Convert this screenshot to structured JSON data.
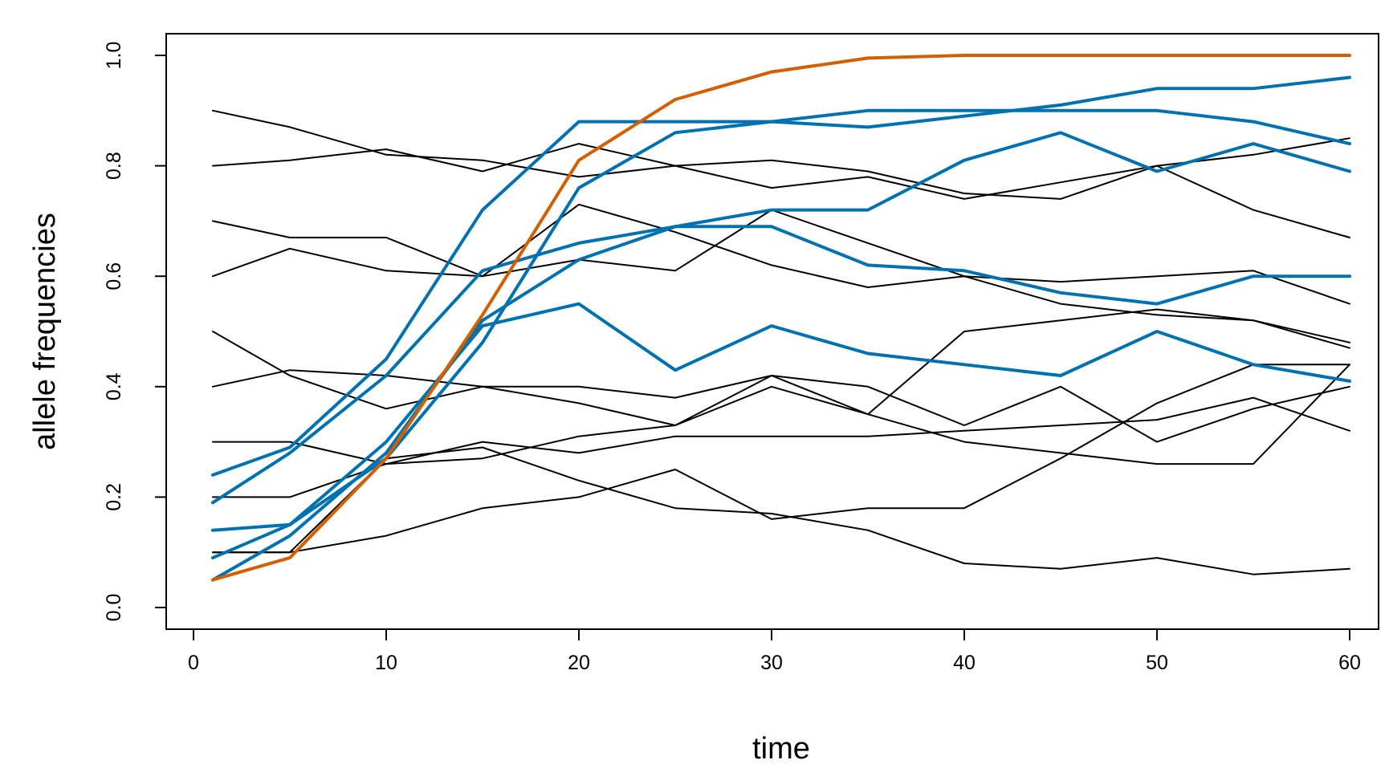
{
  "chart_data": {
    "type": "line",
    "title": "",
    "xlabel": "time",
    "ylabel": "allele frequencies",
    "xlim": [
      0,
      60
    ],
    "ylim": [
      0,
      1
    ],
    "xticks": [
      0,
      10,
      20,
      30,
      40,
      50,
      60
    ],
    "yticks": [
      0.0,
      0.2,
      0.4,
      0.6,
      0.8,
      1.0
    ],
    "xtick_labels": [
      "0",
      "10",
      "20",
      "30",
      "40",
      "50",
      "60"
    ],
    "ytick_labels": [
      "0.0",
      "0.2",
      "0.4",
      "0.6",
      "0.8",
      "1.0"
    ],
    "grid": false,
    "legend": "none",
    "colors": {
      "neutral": "#000000",
      "selected": "#0072b2",
      "fixed": "#d55e00"
    },
    "series": [
      {
        "group": "neutral",
        "x": [
          1,
          5,
          10,
          15,
          20,
          25,
          30,
          35,
          40,
          45,
          50,
          55,
          60
        ],
        "values": [
          0.9,
          0.87,
          0.82,
          0.81,
          0.78,
          0.8,
          0.81,
          0.79,
          0.75,
          0.74,
          0.8,
          0.72,
          0.67
        ]
      },
      {
        "group": "neutral",
        "x": [
          1,
          5,
          10,
          15,
          20,
          25,
          30,
          35,
          40,
          45,
          50,
          55,
          60
        ],
        "values": [
          0.8,
          0.81,
          0.83,
          0.79,
          0.84,
          0.8,
          0.76,
          0.78,
          0.74,
          0.77,
          0.8,
          0.82,
          0.85
        ]
      },
      {
        "group": "neutral",
        "x": [
          1,
          5,
          10,
          15,
          20,
          25,
          30,
          35,
          40,
          45,
          50,
          55,
          60
        ],
        "values": [
          0.7,
          0.67,
          0.67,
          0.6,
          0.73,
          0.68,
          0.62,
          0.58,
          0.6,
          0.59,
          0.6,
          0.61,
          0.55
        ]
      },
      {
        "group": "neutral",
        "x": [
          1,
          5,
          10,
          15,
          20,
          25,
          30,
          35,
          40,
          45,
          50,
          55,
          60
        ],
        "values": [
          0.6,
          0.65,
          0.61,
          0.6,
          0.63,
          0.61,
          0.72,
          0.66,
          0.6,
          0.55,
          0.53,
          0.52,
          0.47
        ]
      },
      {
        "group": "neutral",
        "x": [
          1,
          5,
          10,
          15,
          20,
          25,
          30,
          35,
          40,
          45,
          50,
          55,
          60
        ],
        "values": [
          0.5,
          0.42,
          0.36,
          0.4,
          0.4,
          0.38,
          0.42,
          0.35,
          0.5,
          0.52,
          0.54,
          0.52,
          0.48
        ]
      },
      {
        "group": "neutral",
        "x": [
          1,
          5,
          10,
          15,
          20,
          25,
          30,
          35,
          40,
          45,
          50,
          55,
          60
        ],
        "values": [
          0.4,
          0.43,
          0.42,
          0.4,
          0.37,
          0.33,
          0.42,
          0.4,
          0.33,
          0.4,
          0.3,
          0.36,
          0.4
        ]
      },
      {
        "group": "neutral",
        "x": [
          1,
          5,
          10,
          15,
          20,
          25,
          30,
          35,
          40,
          45,
          50,
          55,
          60
        ],
        "values": [
          0.3,
          0.3,
          0.26,
          0.27,
          0.31,
          0.33,
          0.4,
          0.35,
          0.3,
          0.28,
          0.26,
          0.26,
          0.44
        ]
      },
      {
        "group": "neutral",
        "x": [
          1,
          5,
          10,
          15,
          20,
          25,
          30,
          35,
          40,
          45,
          50,
          55,
          60
        ],
        "values": [
          0.2,
          0.2,
          0.26,
          0.3,
          0.28,
          0.31,
          0.31,
          0.31,
          0.32,
          0.33,
          0.34,
          0.38,
          0.32
        ]
      },
      {
        "group": "neutral",
        "x": [
          1,
          5,
          10,
          15,
          20,
          25,
          30,
          35,
          40,
          45,
          50,
          55,
          60
        ],
        "values": [
          0.1,
          0.1,
          0.13,
          0.18,
          0.2,
          0.25,
          0.16,
          0.18,
          0.18,
          0.27,
          0.37,
          0.44,
          0.44
        ]
      },
      {
        "group": "neutral",
        "x": [
          1,
          5,
          10,
          15,
          20,
          25,
          30,
          35,
          40,
          45,
          50,
          55,
          60
        ],
        "values": [
          0.1,
          0.1,
          0.27,
          0.29,
          0.23,
          0.18,
          0.17,
          0.14,
          0.08,
          0.07,
          0.09,
          0.06,
          0.07
        ]
      },
      {
        "group": "selected",
        "x": [
          1,
          5,
          10,
          15,
          20,
          25,
          30,
          35,
          40,
          45,
          50,
          55,
          60
        ],
        "values": [
          0.24,
          0.29,
          0.45,
          0.72,
          0.88,
          0.88,
          0.88,
          0.9,
          0.9,
          0.9,
          0.9,
          0.88,
          0.84
        ]
      },
      {
        "group": "selected",
        "x": [
          1,
          5,
          10,
          15,
          20,
          25,
          30,
          35,
          40,
          45,
          50,
          55,
          60
        ],
        "values": [
          0.19,
          0.28,
          0.42,
          0.61,
          0.66,
          0.69,
          0.72,
          0.72,
          0.81,
          0.86,
          0.79,
          0.84,
          0.79
        ]
      },
      {
        "group": "selected",
        "x": [
          1,
          5,
          10,
          15,
          20,
          25,
          30,
          35,
          40,
          45,
          50,
          55,
          60
        ],
        "values": [
          0.14,
          0.15,
          0.3,
          0.51,
          0.55,
          0.43,
          0.51,
          0.46,
          0.44,
          0.42,
          0.5,
          0.44,
          0.41
        ]
      },
      {
        "group": "selected",
        "x": [
          1,
          5,
          10,
          15,
          20,
          25,
          30,
          35,
          40,
          45,
          50,
          55,
          60
        ],
        "values": [
          0.09,
          0.15,
          0.27,
          0.48,
          0.76,
          0.86,
          0.88,
          0.87,
          0.89,
          0.91,
          0.94,
          0.94,
          0.96
        ]
      },
      {
        "group": "selected",
        "x": [
          1,
          5,
          10,
          15,
          20,
          25,
          30,
          35,
          40,
          45,
          50,
          55,
          60
        ],
        "values": [
          0.05,
          0.13,
          0.28,
          0.52,
          0.63,
          0.69,
          0.69,
          0.62,
          0.61,
          0.57,
          0.55,
          0.6,
          0.6
        ]
      },
      {
        "group": "fixed",
        "x": [
          1,
          5,
          10,
          15,
          20,
          25,
          30,
          35,
          40,
          45,
          50,
          55,
          60
        ],
        "values": [
          0.05,
          0.09,
          0.27,
          0.53,
          0.81,
          0.92,
          0.97,
          0.995,
          1.0,
          1.0,
          1.0,
          1.0,
          1.0
        ]
      }
    ]
  }
}
